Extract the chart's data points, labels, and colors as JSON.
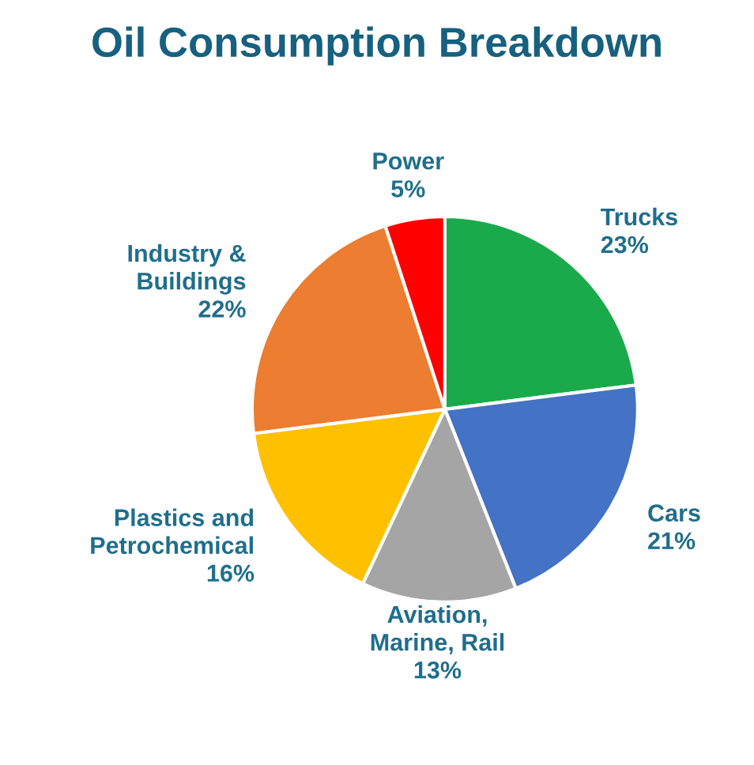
{
  "chart_data": {
    "type": "pie",
    "title": "Oil Consumption Breakdown",
    "categories": [
      "Trucks",
      "Cars",
      "Aviation,\nMarine, Rail",
      "Plastics and\nPetrochemical",
      "Industry &\nBuildings",
      "Power"
    ],
    "values": [
      23,
      21,
      13,
      16,
      22,
      5
    ],
    "value_labels": [
      "23%",
      "21%",
      "13%",
      "16%",
      "22%",
      "5%"
    ],
    "colors": [
      "#1aaa4b",
      "#4472c4",
      "#a5a5a5",
      "#ffc000",
      "#ed7d31",
      "#ff0000"
    ]
  }
}
